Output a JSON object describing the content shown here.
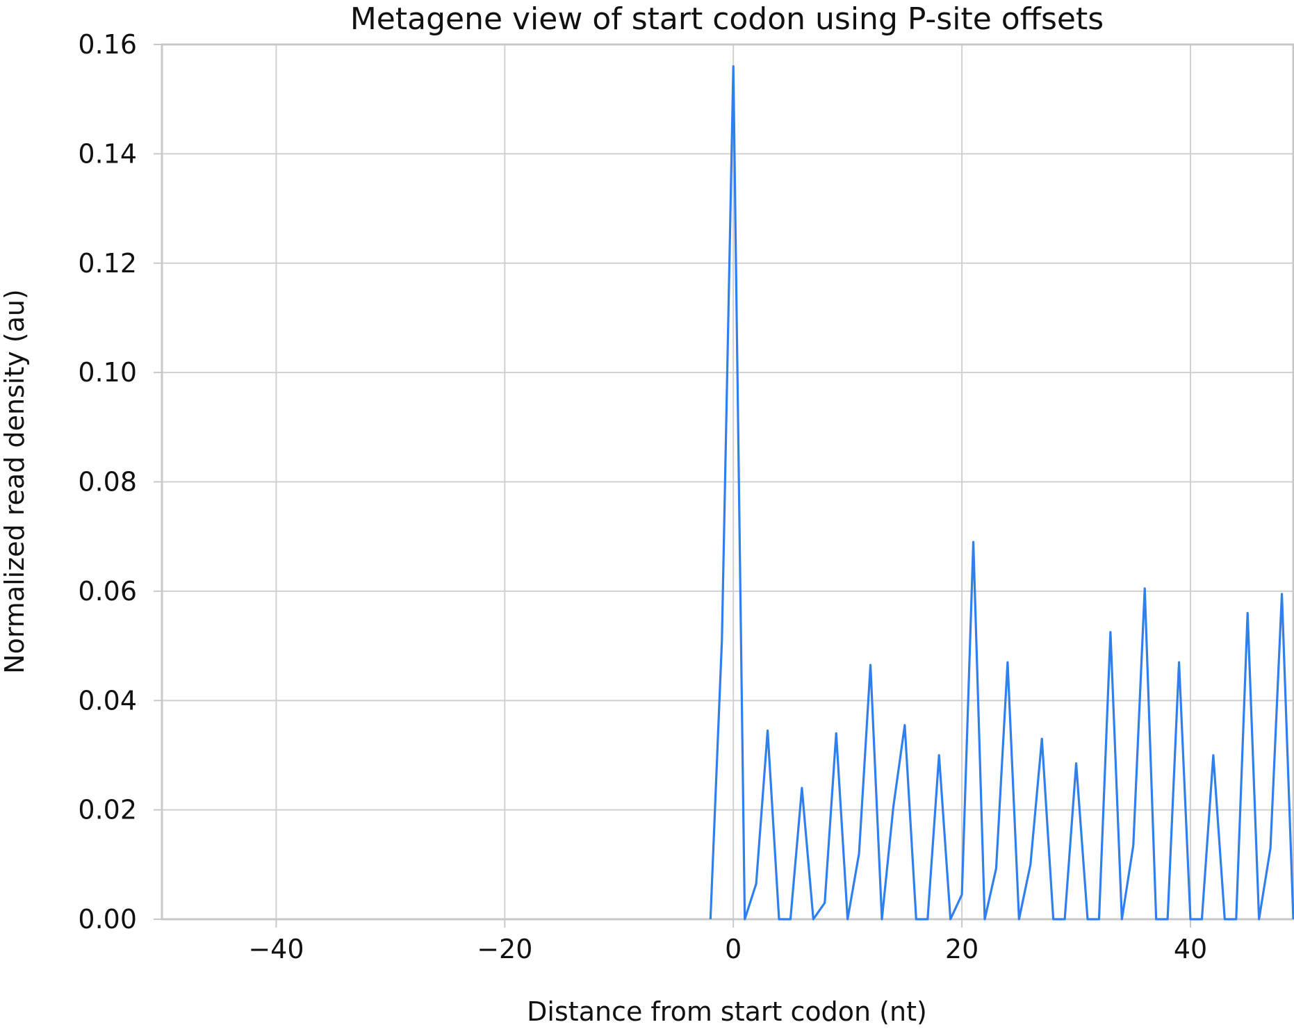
{
  "chart_data": {
    "type": "line",
    "title": "Metagene view of start codon using P-site offsets",
    "xlabel": "Distance from start codon (nt)",
    "ylabel": "Normalized read density (au)",
    "xlim": [
      -50,
      49
    ],
    "ylim": [
      0,
      0.16
    ],
    "xticks": [
      -40,
      -20,
      0,
      20,
      40
    ],
    "xtick_labels": [
      "−40",
      "−20",
      "0",
      "20",
      "40"
    ],
    "yticks": [
      0,
      0.02,
      0.04,
      0.06,
      0.08,
      0.1,
      0.12,
      0.14,
      0.16
    ],
    "ytick_labels": [
      "0.00",
      "0.02",
      "0.04",
      "0.06",
      "0.08",
      "0.10",
      "0.12",
      "0.14",
      "0.16"
    ],
    "grid": true,
    "legend": "none",
    "colors": {
      "line": "#2f7fed",
      "grid": "#d0d0d0",
      "frame": "#c8c8c8"
    },
    "series": [
      {
        "x": [
          -2,
          -1,
          0,
          1,
          2,
          3,
          4,
          5,
          6,
          7,
          8,
          9,
          10,
          11,
          12,
          13,
          14,
          15,
          16,
          17,
          18,
          19,
          20,
          21,
          22,
          23,
          24,
          25,
          26,
          27,
          28,
          29,
          30,
          31,
          32,
          33,
          34,
          35,
          36,
          37,
          38,
          39,
          40,
          41,
          42,
          43,
          44,
          45,
          46,
          47,
          48,
          49
        ],
        "y": [
          0,
          0.051,
          0.156,
          0,
          0.0065,
          0.0345,
          0,
          0,
          0.024,
          0,
          0.003,
          0.034,
          0,
          0.012,
          0.0465,
          0,
          0.0205,
          0.0355,
          0,
          0,
          0.03,
          0,
          0.0045,
          0.069,
          0,
          0.0093,
          0.047,
          0,
          0.01,
          0.033,
          0,
          0,
          0.0285,
          0,
          0,
          0.0525,
          0,
          0.0135,
          0.0605,
          0,
          0,
          0.047,
          0,
          0,
          0.03,
          0,
          0,
          0.056,
          0,
          0.013,
          0.0595,
          0
        ]
      }
    ]
  }
}
